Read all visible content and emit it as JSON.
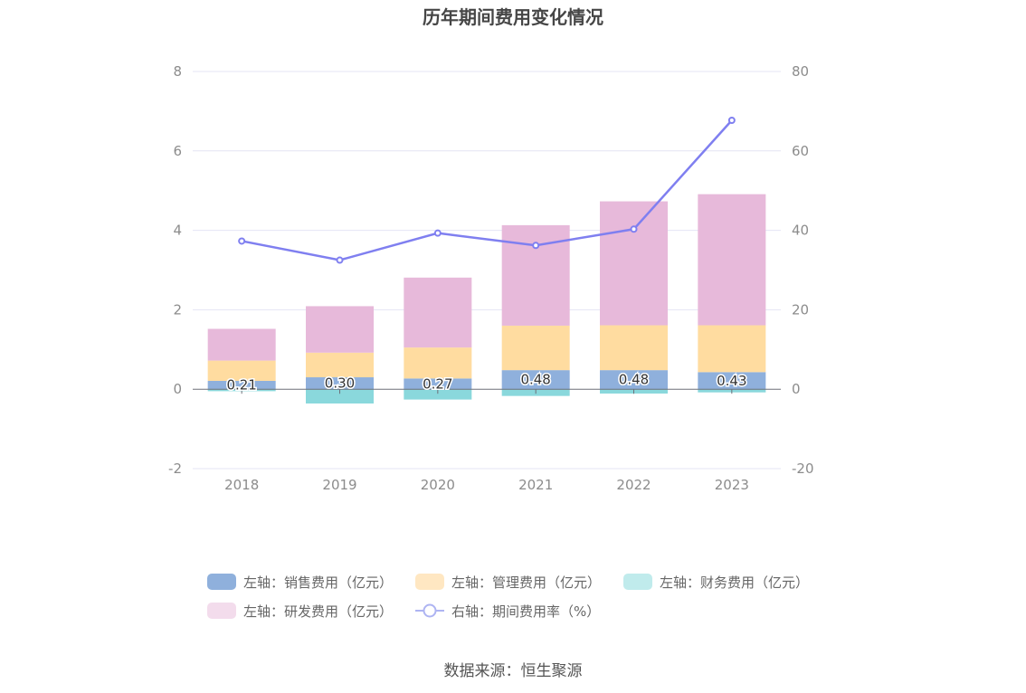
{
  "chart_data": {
    "type": "bar",
    "title": "历年期间费用变化情况",
    "categories": [
      "2018",
      "2019",
      "2020",
      "2021",
      "2022",
      "2023"
    ],
    "series": [
      {
        "name": "左轴：销售费用（亿元）",
        "axis": "left",
        "kind": "stacked-bar",
        "color": "#8fb0dc",
        "values": [
          0.21,
          0.3,
          0.27,
          0.48,
          0.48,
          0.43
        ],
        "labels": [
          "0.21",
          "0.30",
          "0.27",
          "0.48",
          "0.48",
          "0.43"
        ]
      },
      {
        "name": "左轴：管理费用（亿元）",
        "axis": "left",
        "kind": "stacked-bar",
        "color": "#ffdca0",
        "values": [
          0.51,
          0.62,
          0.78,
          1.12,
          1.13,
          1.18
        ]
      },
      {
        "name": "左轴：财务费用（亿元）",
        "axis": "left",
        "kind": "stacked-bar",
        "color": "#8ad8dc",
        "values": [
          -0.05,
          -0.36,
          -0.26,
          -0.17,
          -0.11,
          -0.08
        ]
      },
      {
        "name": "左轴：研发费用（亿元）",
        "axis": "left",
        "kind": "stacked-bar",
        "color": "#e7b9da",
        "values": [
          0.8,
          1.17,
          1.76,
          2.53,
          3.12,
          3.3
        ]
      },
      {
        "name": "右轴：期间费用率（%）",
        "axis": "right",
        "kind": "line",
        "color": "#7f7ff0",
        "values": [
          37.3,
          32.5,
          39.3,
          36.2,
          40.3,
          67.7
        ]
      }
    ],
    "left_axis": {
      "min": -2,
      "max": 8,
      "ticks": [
        "-2",
        "0",
        "2",
        "4",
        "6",
        "8"
      ]
    },
    "right_axis": {
      "min": -20,
      "max": 80,
      "ticks": [
        "-20",
        "0",
        "20",
        "40",
        "60",
        "80"
      ]
    },
    "grid": true,
    "legend_position": "bottom"
  },
  "legend_colors": {
    "销售": "#8fb0dc",
    "管理": "#ffe7c2",
    "财务": "#c0ebec",
    "研发": "#f3dcec",
    "rate": "#aeb4f2"
  },
  "source": "数据来源：恒生聚源"
}
